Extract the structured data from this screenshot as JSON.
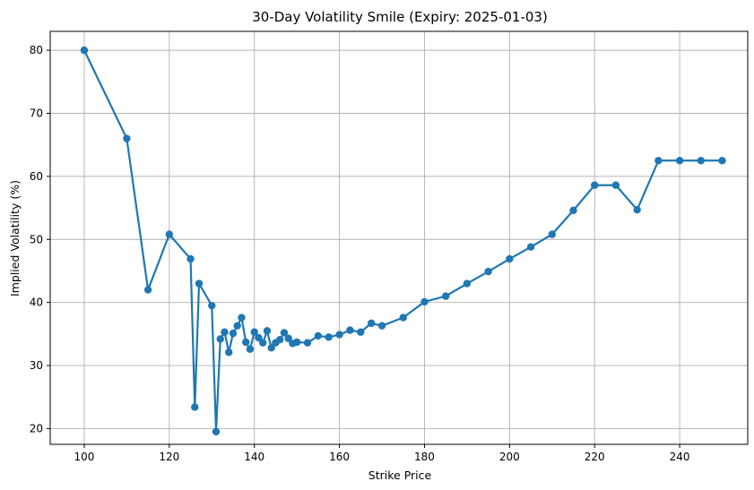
{
  "chart_data": {
    "type": "line",
    "title": "30-Day Volatility Smile (Expiry: 2025-01-03)",
    "xlabel": "Strike Price",
    "ylabel": "Implied Volatility (%)",
    "xlim": [
      92,
      256
    ],
    "ylim": [
      17.5,
      83
    ],
    "xticks": [
      100,
      120,
      140,
      160,
      180,
      200,
      220,
      240
    ],
    "yticks": [
      20,
      30,
      40,
      50,
      60,
      70,
      80
    ],
    "grid": true,
    "color": "#1f77b4",
    "series": [
      {
        "x": [
          100,
          110,
          115,
          120,
          125,
          126,
          127,
          130,
          131,
          132,
          133,
          134,
          135,
          136,
          137,
          138,
          139,
          140,
          141,
          142,
          143,
          144,
          145,
          146,
          147,
          148,
          149,
          150,
          152.5,
          155,
          157.5,
          160,
          162.5,
          165,
          167.5,
          170,
          175,
          180,
          185,
          190,
          195,
          200,
          205,
          210,
          215,
          220,
          225,
          230,
          235,
          240,
          245,
          250
        ],
        "y": [
          80,
          66,
          42,
          50.8,
          46.9,
          23.4,
          43,
          39.5,
          19.5,
          34.2,
          35.3,
          32.1,
          35.1,
          36.3,
          37.6,
          33.7,
          32.6,
          35.3,
          34.4,
          33.6,
          35.5,
          32.8,
          33.6,
          34.1,
          35.2,
          34.3,
          33.5,
          33.7,
          33.6,
          34.7,
          34.5,
          34.9,
          35.6,
          35.3,
          36.7,
          36.3,
          37.6,
          40.1,
          41,
          43,
          44.9,
          46.9,
          48.8,
          50.8,
          54.6,
          58.6,
          58.6,
          54.7,
          62.5,
          62.5,
          62.5,
          62.5
        ]
      }
    ]
  }
}
